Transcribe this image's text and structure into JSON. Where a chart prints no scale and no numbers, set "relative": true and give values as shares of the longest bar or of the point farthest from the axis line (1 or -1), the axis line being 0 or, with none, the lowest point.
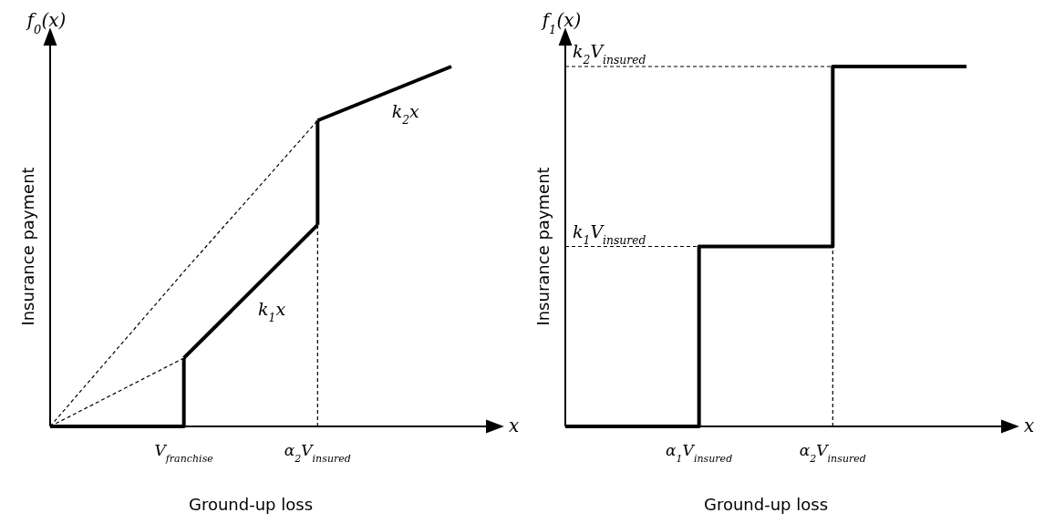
{
  "chart_data": [
    {
      "type": "line",
      "title": "f$_{0}$(x)",
      "xlabel": "Ground-up loss",
      "ylabel": "Insurance payment",
      "relative": true,
      "tick_labels": "x",
      "marker": "none",
      "categories": [
        null,
        "V$_{franchise}$",
        "α$_{2}$V$_{insured}$",
        null
      ],
      "series": [
        {
          "type": "step",
          "color": "#000000",
          "line_style": "solid",
          "values": [
            0,
            0.19,
            null,
            null
          ]
        },
        {
          "color": "#000000",
          "line_style": "solid",
          "values": [
            null,
            0.19,
            0.56,
            null
          ]
        },
        {
          "color": "#000000",
          "line_style": "solid",
          "x": [
            "α$_{2}$V$_{insured}$",
            "α$_{2}$V$_{insured}$"
          ],
          "values": [
            0.56,
            0.85
          ]
        },
        {
          "color": "#000000",
          "line_style": "solid",
          "values": [
            null,
            null,
            0.85,
            1
          ]
        },
        {
          "color": "#000000",
          "line_style": "dashed",
          "values": [
            0,
            0.19,
            null,
            null
          ]
        },
        {
          "color": "#000000",
          "line_style": "dashed",
          "values": [
            0,
            0.43,
            0.85,
            null
          ]
        },
        {
          "color": "#000000",
          "line_style": "dashed",
          "x": [
            "α$_{2}$V$_{insured}$",
            "α$_{2}$V$_{insured}$"
          ],
          "values": [
            0,
            0.56
          ]
        }
      ],
      "annotations": [
        "x",
        "k$_{1}$x",
        "k$_{2}$x"
      ]
    },
    {
      "type": "line",
      "title": "f$_{1}$(x)",
      "xlabel": "Ground-up loss",
      "ylabel": "Insurance payment",
      "relative": true,
      "tick_labels": "x",
      "marker": "none",
      "categories": [
        null,
        "α$_{1}$V$_{insured}$",
        "α$_{2}$V$_{insured}$",
        null
      ],
      "series": [
        {
          "type": "step",
          "color": "#000000",
          "line_style": "solid",
          "values": [
            0,
            0.5,
            1,
            1
          ]
        },
        {
          "color": "#000000",
          "line_style": "dashed",
          "values": [
            0.5,
            0.5,
            null,
            null
          ]
        },
        {
          "color": "#000000",
          "line_style": "dashed",
          "values": [
            1,
            1,
            1,
            null
          ]
        },
        {
          "color": "#000000",
          "line_style": "dashed",
          "x": [
            "α$_{2}$V$_{insured}$",
            "α$_{2}$V$_{insured}$"
          ],
          "values": [
            0,
            0.5
          ]
        }
      ],
      "annotations": [
        "x",
        {
          "text": "k$_{1}$V$_{insured}$",
          "y": 0.5
        },
        {
          "text": "k$_{2}$V$_{insured}$",
          "y": 1
        }
      ]
    }
  ]
}
